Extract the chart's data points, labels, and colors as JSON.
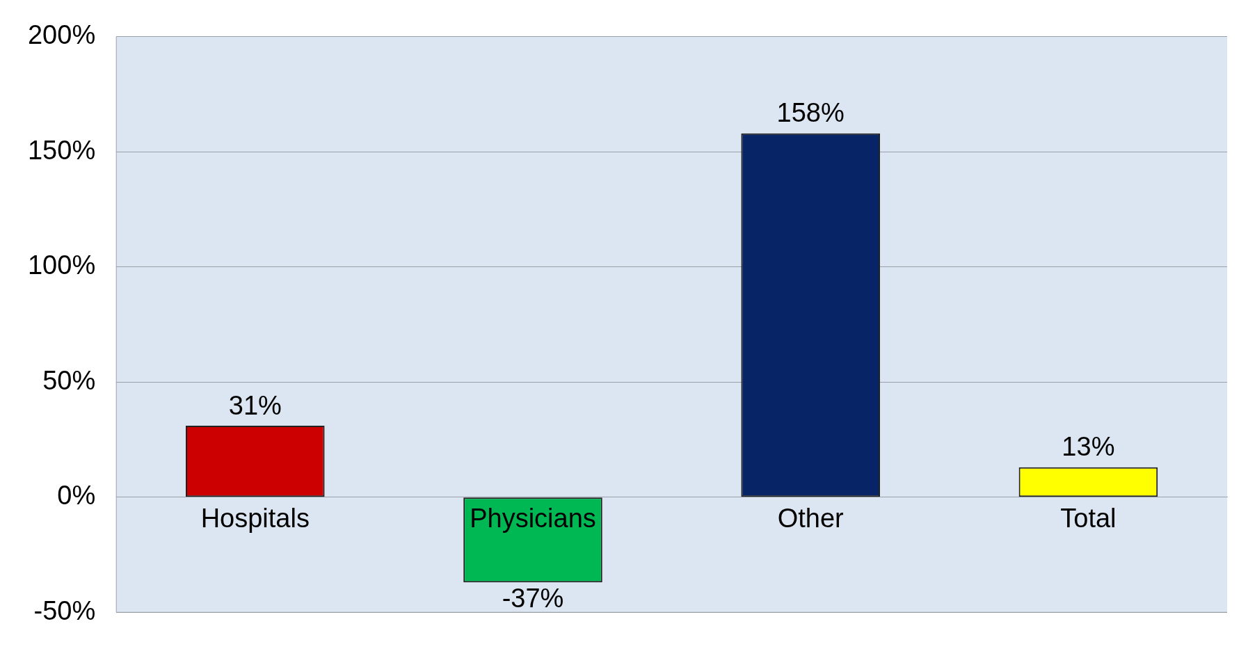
{
  "chart_data": {
    "type": "bar",
    "categories": [
      "Hospitals",
      "Physicians",
      "Other",
      "Total"
    ],
    "values": [
      31,
      -37,
      158,
      13
    ],
    "colors": [
      "#cc0000",
      "#00b853",
      "#062466",
      "#ffff00"
    ],
    "value_labels": [
      "31%",
      "-37%",
      "158%",
      "13%"
    ],
    "ylim": [
      -50,
      200
    ],
    "yticks": [
      {
        "value": -50,
        "label": "-50%"
      },
      {
        "value": 0,
        "label": "0%"
      },
      {
        "value": 50,
        "label": "50%"
      },
      {
        "value": 100,
        "label": "100%"
      },
      {
        "value": 150,
        "label": "150%"
      },
      {
        "value": 200,
        "label": "200%"
      }
    ],
    "grid": "y",
    "legend": false
  }
}
